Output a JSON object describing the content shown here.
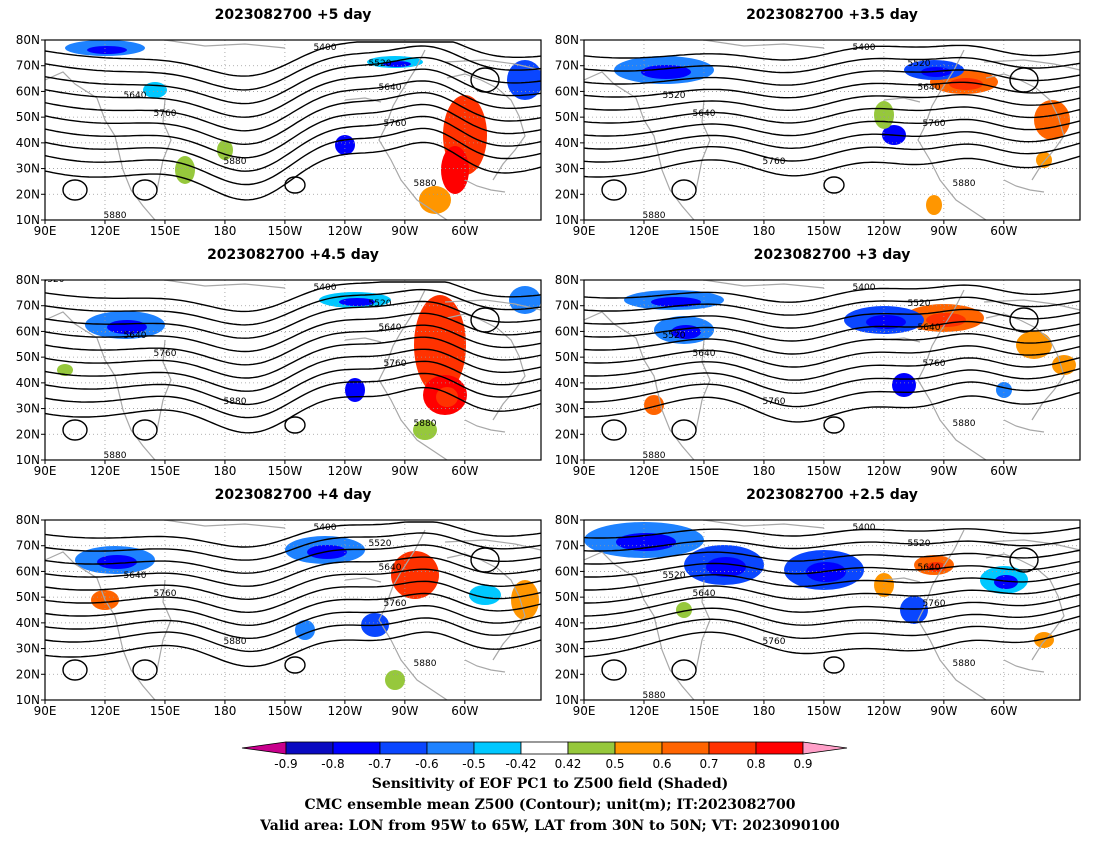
{
  "panels": [
    {
      "title": "2023082700  +5 day",
      "labels": [
        "5400",
        "5520",
        "5640",
        "5640",
        "5760",
        "5760",
        "5880",
        "5880",
        "5880"
      ]
    },
    {
      "title": "2023082700  +3.5 day",
      "labels": [
        "5400",
        "5520",
        "5520",
        "5640",
        "5640",
        "5760",
        "5760",
        "5880",
        "5880"
      ]
    },
    {
      "title": "2023082700  +4.5 day",
      "labels": [
        "5400",
        "5520",
        "5640",
        "5640",
        "5760",
        "5760",
        "5880",
        "5880",
        "5880",
        "5520"
      ]
    },
    {
      "title": "2023082700  +3 day",
      "labels": [
        "5400",
        "5520",
        "5520",
        "5640",
        "5640",
        "5760",
        "5760",
        "5880",
        "5880"
      ]
    },
    {
      "title": "2023082700  +4 day",
      "labels": [
        "5400",
        "5520",
        "5640",
        "5640",
        "5760",
        "5760",
        "5880",
        "5880"
      ]
    },
    {
      "title": "2023082700  +2.5 day",
      "labels": [
        "5400",
        "5520",
        "5520",
        "5640",
        "5640",
        "5760",
        "5760",
        "5880",
        "5880"
      ]
    }
  ],
  "axes": {
    "lat_labels": [
      "80N",
      "70N",
      "60N",
      "50N",
      "40N",
      "30N",
      "20N",
      "10N"
    ],
    "lon_labels": [
      "90E",
      "120E",
      "150E",
      "180",
      "150W",
      "120W",
      "90W",
      "60W"
    ]
  },
  "colorbar": {
    "labels": [
      "-0.9",
      "-0.8",
      "-0.7",
      "-0.6",
      "-0.5",
      "-0.42",
      "0.42",
      "0.5",
      "0.6",
      "0.7",
      "0.8",
      "0.9"
    ],
    "colors": [
      "#c8008c",
      "#0a0ac0",
      "#0000ff",
      "#0a46ff",
      "#1e82ff",
      "#00c8ff",
      "#ffffff",
      "#96c83c",
      "#ff9600",
      "#ff6400",
      "#ff3200",
      "#ff0000",
      "#ff9fc8"
    ]
  },
  "footer": {
    "line1": "Sensitivity of EOF PC1 to Z500 field (Shaded)",
    "line2": "CMC ensemble mean Z500 (Contour); unit(m); IT:2023082700",
    "line3": "Valid area: LON from 95W to 65W, LAT from 30N to 50N; VT: 2023090100"
  }
}
